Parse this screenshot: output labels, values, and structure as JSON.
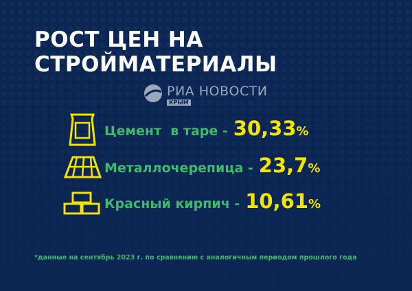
{
  "header": {
    "title_lines": [
      "РОСТ ЦЕН НА",
      "СТРОЙМАТЕРИАЛЫ"
    ]
  },
  "logo": {
    "name": "РИА НОВОСТИ",
    "region": "КРЫМ"
  },
  "items": [
    {
      "label": "Цемент  в таре -",
      "value": "30,33",
      "unit": "%"
    },
    {
      "label": "Металлочерепица -",
      "value": "23,7",
      "unit": "%"
    },
    {
      "label": "Красный кирпич -",
      "value": "10,61",
      "unit": "%"
    }
  ],
  "footnote": "*данные на сентябрь 2023 г. по сравнению с аналогичным периодом прошлого года"
}
